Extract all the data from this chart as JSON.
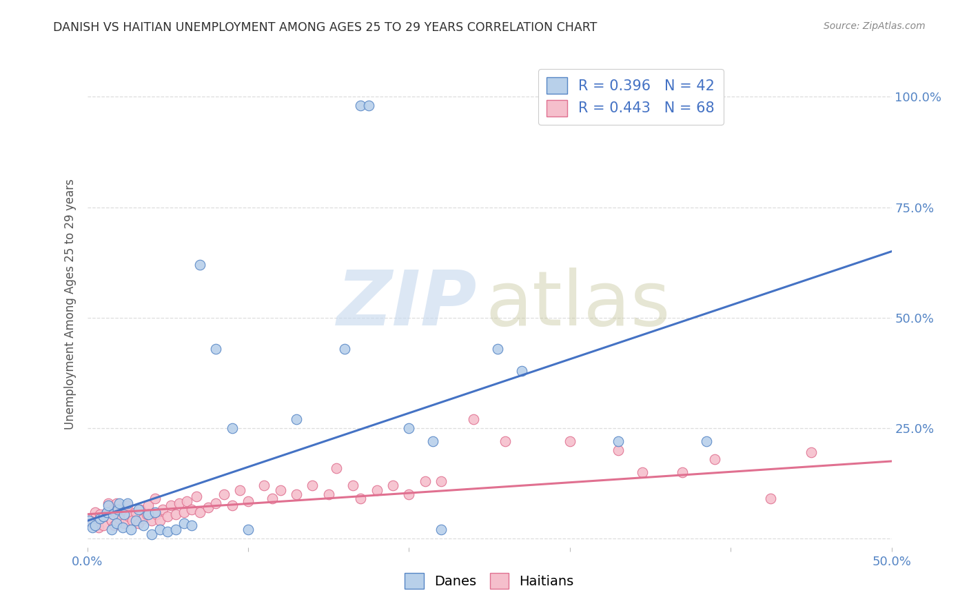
{
  "title": "DANISH VS HAITIAN UNEMPLOYMENT AMONG AGES 25 TO 29 YEARS CORRELATION CHART",
  "source": "Source: ZipAtlas.com",
  "ylabel": "Unemployment Among Ages 25 to 29 years",
  "xlim": [
    0.0,
    0.5
  ],
  "ylim": [
    -0.02,
    1.08
  ],
  "danes_R": "0.396",
  "danes_N": "42",
  "haitians_R": "0.443",
  "haitians_N": "68",
  "dane_color": "#b8d0ea",
  "dane_edge_color": "#5585c5",
  "dane_line_color": "#4472c4",
  "haitian_color": "#f5bfcc",
  "haitian_edge_color": "#e07090",
  "haitian_line_color": "#e07090",
  "title_color": "#303030",
  "source_color": "#888888",
  "axis_tick_color": "#5585c5",
  "ylabel_color": "#555555",
  "grid_color": "#dddddd",
  "danes_x": [
    0.001,
    0.003,
    0.005,
    0.008,
    0.01,
    0.012,
    0.013,
    0.015,
    0.016,
    0.018,
    0.019,
    0.02,
    0.022,
    0.023,
    0.025,
    0.027,
    0.03,
    0.032,
    0.035,
    0.038,
    0.04,
    0.042,
    0.045,
    0.05,
    0.055,
    0.06,
    0.065,
    0.07,
    0.08,
    0.09,
    0.1,
    0.13,
    0.16,
    0.17,
    0.175,
    0.2,
    0.215,
    0.22,
    0.255,
    0.27,
    0.33,
    0.385
  ],
  "danes_y": [
    0.04,
    0.025,
    0.03,
    0.045,
    0.05,
    0.06,
    0.075,
    0.02,
    0.055,
    0.035,
    0.065,
    0.08,
    0.025,
    0.055,
    0.08,
    0.02,
    0.04,
    0.065,
    0.03,
    0.055,
    0.01,
    0.06,
    0.02,
    0.015,
    0.02,
    0.035,
    0.03,
    0.62,
    0.43,
    0.25,
    0.02,
    0.27,
    0.43,
    0.98,
    0.98,
    0.25,
    0.22,
    0.02,
    0.43,
    0.38,
    0.22,
    0.22
  ],
  "haitians_x": [
    0.001,
    0.003,
    0.005,
    0.007,
    0.008,
    0.01,
    0.012,
    0.013,
    0.015,
    0.016,
    0.017,
    0.018,
    0.019,
    0.02,
    0.022,
    0.023,
    0.025,
    0.026,
    0.028,
    0.03,
    0.032,
    0.033,
    0.035,
    0.037,
    0.038,
    0.04,
    0.042,
    0.043,
    0.045,
    0.047,
    0.05,
    0.052,
    0.055,
    0.057,
    0.06,
    0.062,
    0.065,
    0.068,
    0.07,
    0.075,
    0.08,
    0.085,
    0.09,
    0.095,
    0.1,
    0.11,
    0.115,
    0.12,
    0.13,
    0.14,
    0.15,
    0.155,
    0.165,
    0.17,
    0.18,
    0.19,
    0.2,
    0.21,
    0.22,
    0.24,
    0.26,
    0.3,
    0.33,
    0.345,
    0.37,
    0.39,
    0.425,
    0.45
  ],
  "haitians_y": [
    0.04,
    0.035,
    0.06,
    0.025,
    0.055,
    0.03,
    0.06,
    0.08,
    0.04,
    0.065,
    0.03,
    0.08,
    0.055,
    0.045,
    0.065,
    0.035,
    0.075,
    0.05,
    0.04,
    0.06,
    0.035,
    0.065,
    0.045,
    0.055,
    0.075,
    0.04,
    0.09,
    0.055,
    0.04,
    0.065,
    0.05,
    0.075,
    0.055,
    0.08,
    0.06,
    0.085,
    0.065,
    0.095,
    0.06,
    0.07,
    0.08,
    0.1,
    0.075,
    0.11,
    0.085,
    0.12,
    0.09,
    0.11,
    0.1,
    0.12,
    0.1,
    0.16,
    0.12,
    0.09,
    0.11,
    0.12,
    0.1,
    0.13,
    0.13,
    0.27,
    0.22,
    0.22,
    0.2,
    0.15,
    0.15,
    0.18,
    0.09,
    0.195
  ],
  "dane_line_x0": 0.0,
  "dane_line_y0": 0.04,
  "dane_line_x1": 0.5,
  "dane_line_y1": 0.65,
  "haitian_line_x0": 0.0,
  "haitian_line_y0": 0.055,
  "haitian_line_x1": 0.5,
  "haitian_line_y1": 0.175
}
